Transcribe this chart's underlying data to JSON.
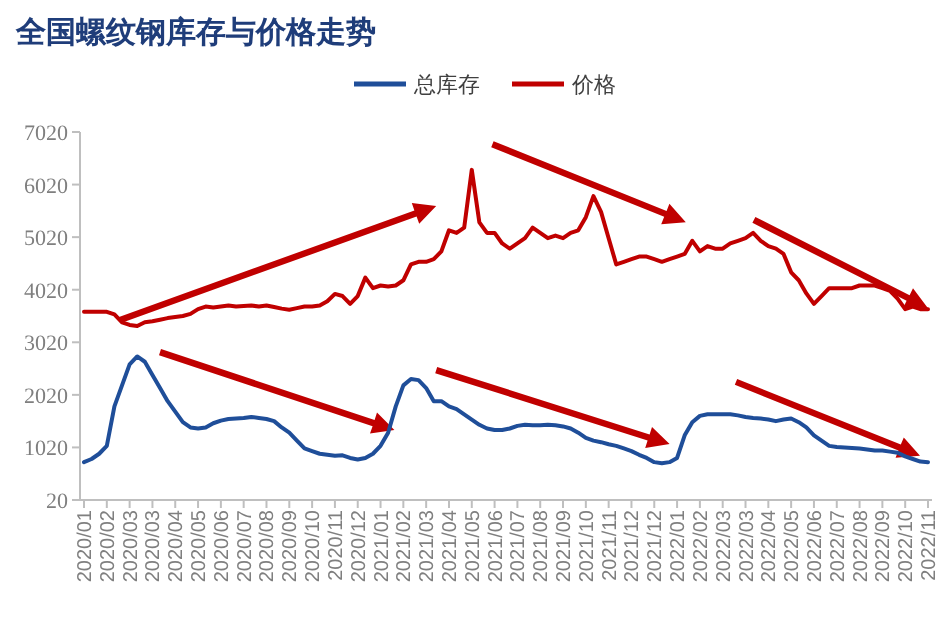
{
  "chart_data": {
    "type": "line",
    "title": "全国螺纹钢库存与价格走势",
    "categories": [
      "2020/01",
      null,
      null,
      "2020/02",
      null,
      null,
      "2020/03",
      null,
      null,
      "2020/03",
      null,
      null,
      "2020/04",
      null,
      null,
      "2020/05",
      null,
      null,
      "2020/06",
      null,
      null,
      "2020/07",
      null,
      null,
      "2020/08",
      null,
      null,
      "2020/09",
      null,
      null,
      "2020/10",
      null,
      null,
      "2020/11",
      null,
      null,
      "2020/12",
      null,
      null,
      "2021/01",
      null,
      null,
      "2021/02",
      null,
      null,
      "2021/03",
      null,
      null,
      "2021/04",
      null,
      null,
      "2021/05",
      null,
      null,
      "2021/06",
      null,
      null,
      "2021/07",
      null,
      null,
      "2021/08",
      null,
      null,
      "2021/09",
      null,
      null,
      "2021/10",
      null,
      null,
      "2021/11",
      null,
      null,
      "2021/12",
      null,
      null,
      "2021/12",
      null,
      null,
      "2022/01",
      null,
      null,
      "2022/02",
      null,
      null,
      "2022/03",
      null,
      null,
      "2022/03",
      null,
      null,
      "2022/04",
      null,
      null,
      "2022/05",
      null,
      null,
      "2022/06",
      null,
      null,
      "2022/07",
      null,
      null,
      "2022/08",
      null,
      null,
      "2022/09",
      null,
      null,
      "2022/10",
      null,
      null,
      "2022/11"
    ],
    "series": [
      {
        "name": "总库存",
        "color": "#1f4e99",
        "values": [
          740,
          800,
          900,
          1050,
          1800,
          2200,
          2600,
          2750,
          2650,
          2400,
          2150,
          1900,
          1700,
          1500,
          1400,
          1380,
          1400,
          1480,
          1530,
          1560,
          1570,
          1580,
          1600,
          1580,
          1560,
          1520,
          1400,
          1300,
          1150,
          1000,
          950,
          900,
          880,
          860,
          870,
          820,
          790,
          820,
          900,
          1050,
          1300,
          1800,
          2200,
          2320,
          2300,
          2150,
          1900,
          1900,
          1800,
          1750,
          1650,
          1550,
          1450,
          1380,
          1350,
          1350,
          1380,
          1430,
          1450,
          1440,
          1440,
          1450,
          1440,
          1420,
          1380,
          1300,
          1200,
          1150,
          1120,
          1080,
          1050,
          1000,
          950,
          880,
          820,
          740,
          720,
          740,
          820,
          1250,
          1500,
          1620,
          1650,
          1650,
          1650,
          1650,
          1630,
          1600,
          1580,
          1570,
          1550,
          1520,
          1550,
          1570,
          1500,
          1400,
          1250,
          1150,
          1050,
          1030,
          1020,
          1010,
          1000,
          980,
          960,
          960,
          940,
          920,
          850,
          800,
          750,
          740
        ]
      },
      {
        "name": "价格",
        "color": "#c00000",
        "values": [
          3600,
          3600,
          3600,
          3600,
          3550,
          3400,
          3350,
          3330,
          3400,
          3420,
          3450,
          3480,
          3500,
          3520,
          3560,
          3650,
          3700,
          3680,
          3700,
          3720,
          3700,
          3710,
          3720,
          3700,
          3720,
          3690,
          3660,
          3640,
          3670,
          3700,
          3700,
          3720,
          3800,
          3940,
          3900,
          3750,
          3900,
          4250,
          4050,
          4100,
          4080,
          4100,
          4200,
          4500,
          4550,
          4550,
          4600,
          4750,
          5150,
          5100,
          5200,
          6300,
          5300,
          5100,
          5100,
          4900,
          4800,
          4900,
          5000,
          5200,
          5100,
          5000,
          5050,
          5000,
          5100,
          5150,
          5400,
          5800,
          5500,
          5000,
          4500,
          4550,
          4600,
          4650,
          4650,
          4600,
          4550,
          4600,
          4650,
          4700,
          4950,
          4750,
          4850,
          4800,
          4800,
          4900,
          4950,
          5000,
          5100,
          4950,
          4850,
          4800,
          4700,
          4350,
          4200,
          3950,
          3750,
          3900,
          4050,
          4050,
          4050,
          4050,
          4100,
          4100,
          4100,
          4050,
          4000,
          3850,
          3650,
          3700,
          3650,
          3650
        ]
      }
    ],
    "ylim": [
      20,
      7020
    ],
    "yticks": [
      20,
      1020,
      2020,
      3020,
      4020,
      5020,
      6020,
      7020
    ],
    "legend": "top"
  }
}
